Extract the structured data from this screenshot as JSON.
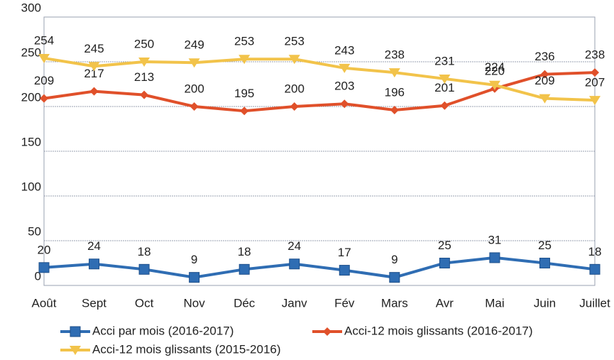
{
  "chart_data": {
    "type": "line",
    "categories": [
      "Août",
      "Sept",
      "Oct",
      "Nov",
      "Déc",
      "Janv",
      "Fév",
      "Mars",
      "Avr",
      "Mai",
      "Juin",
      "Juillet"
    ],
    "series": [
      {
        "name": "Acci par mois (2016-2017)",
        "color": "#2f6db3",
        "marker": "square",
        "values": [
          20,
          24,
          18,
          9,
          18,
          24,
          17,
          9,
          25,
          31,
          25,
          18
        ]
      },
      {
        "name": "Acci-12 mois glissants (2016-2017)",
        "color": "#e0502a",
        "marker": "diamond",
        "values": [
          209,
          217,
          213,
          200,
          195,
          200,
          203,
          196,
          201,
          220,
          236,
          238
        ]
      },
      {
        "name": "Acci-12 mois glissants (2015-2016)",
        "color": "#f2c34a",
        "marker": "triangle",
        "values": [
          254,
          245,
          250,
          249,
          253,
          253,
          243,
          238,
          231,
          224,
          209,
          207
        ]
      }
    ],
    "ylim": [
      0,
      300
    ],
    "yticks": [
      0,
      50,
      100,
      150,
      200,
      250,
      300
    ],
    "grid": true,
    "legend": "bottom"
  }
}
